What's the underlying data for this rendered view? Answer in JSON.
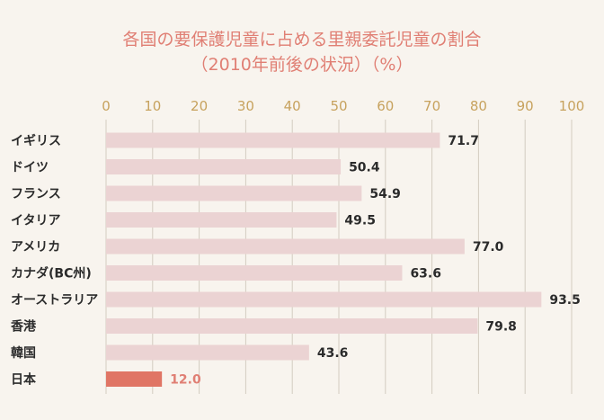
{
  "chart_data": {
    "type": "bar",
    "orientation": "horizontal",
    "title": "各国の要保護児童に占める里親委託児童の割合",
    "subtitle": "（2010年前後の状況）（%）",
    "categories": [
      "イギリス",
      "ドイツ",
      "フランス",
      "イタリア",
      "アメリカ",
      "カナダ(BC州)",
      "オーストラリア",
      "香港",
      "韓国",
      "日本"
    ],
    "values": [
      71.7,
      50.4,
      54.9,
      49.5,
      77.0,
      63.6,
      93.5,
      79.8,
      43.6,
      12.0
    ],
    "value_labels": [
      "71.7",
      "50.4",
      "54.9",
      "49.5",
      "77.0",
      "63.6",
      "93.5",
      "79.8",
      "43.6",
      "12.0"
    ],
    "highlight_index": 9,
    "xlim": [
      0,
      100
    ],
    "xticks": [
      "0",
      "10",
      "20",
      "30",
      "40",
      "50",
      "60",
      "70",
      "80",
      "90",
      "100"
    ],
    "grid": true,
    "axis_position": "top",
    "colors": {
      "background": "#f8f4ee",
      "bar": "#ebd3d3",
      "highlight_bar": "#e07565",
      "title": "#e07f74",
      "tick": "#c7a25e",
      "grid": "#d3ccc0",
      "text": "#2b2b2b"
    }
  }
}
